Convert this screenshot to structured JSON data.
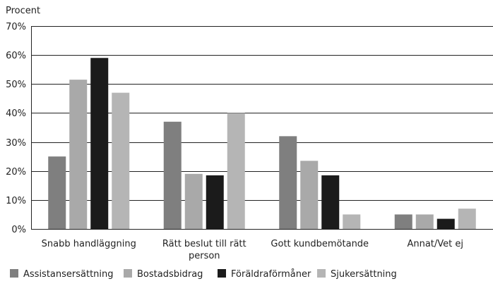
{
  "chart_data": {
    "type": "bar",
    "ylabel": "Procent",
    "ylim": [
      0,
      70
    ],
    "yticks": [
      0,
      10,
      20,
      30,
      40,
      50,
      60,
      70
    ],
    "ytick_labels": [
      "0%",
      "10%",
      "20%",
      "30%",
      "40%",
      "50%",
      "60%",
      "70%"
    ],
    "grid": true,
    "legend_position": "bottom-left",
    "categories": [
      "Snabb handläggning",
      "Rätt beslut till rätt person",
      "Gott kundbemötande",
      "Annat/Vet ej"
    ],
    "category_lines": [
      [
        "Snabb handläggning"
      ],
      [
        "Rätt beslut till rätt",
        "person"
      ],
      [
        "Gott kundbemötande"
      ],
      [
        "Annat/Vet ej"
      ]
    ],
    "series": [
      {
        "name": "Assistansersättning",
        "color": "#7f7f7f",
        "values": [
          25,
          37,
          32,
          5
        ]
      },
      {
        "name": "Bostadsbidrag",
        "color": "#a9a9a9",
        "values": [
          51.5,
          19,
          23.5,
          5
        ]
      },
      {
        "name": "Föräldraförmåner",
        "color": "#1b1b1b",
        "values": [
          59,
          18.5,
          18.5,
          3.5
        ]
      },
      {
        "name": "Sjukersättning",
        "color": "#b5b5b5",
        "values": [
          47,
          40,
          5,
          7
        ]
      }
    ]
  }
}
